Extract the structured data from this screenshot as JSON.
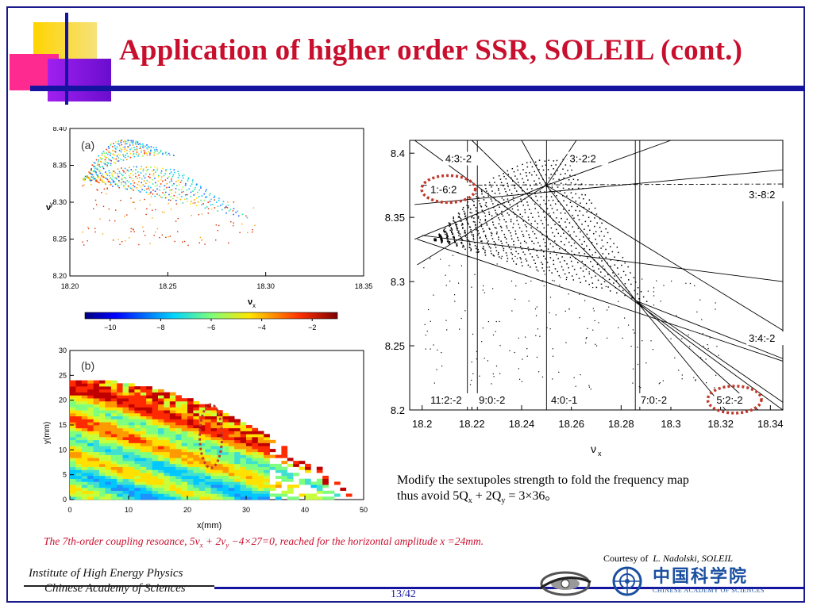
{
  "slide": {
    "title": "Application of higher order SSR, SOLEIL (cont.)",
    "page_number": "13/42",
    "institute_line1": "Institute of High Energy Physics",
    "institute_line2": "Chinese Academy of Sciences",
    "courtesy_prefix": "Courtesy of",
    "courtesy_name": "L. Nadolski, SOLEIL",
    "cas_logo_chinese": "中国科学院",
    "cas_logo_english": "CHINESE ACADEMY OF SCIENCES",
    "note_line1": "Modify the sextupoles strength to fold the frequency map",
    "note_line2": "thus avoid 5Q",
    "note_line2_sub1": "x",
    "note_line2_mid": " + 2Q",
    "note_line2_sub2": "y",
    "note_line2_end": " = 3×36。",
    "caption_pre": "The 7th-order coupling resoance, 5v",
    "caption_sub1": "x",
    "caption_mid": " + 2v",
    "caption_sub2": "y",
    "caption_post": " −4×27=0, reached for the horizontal amplitude x =24mm.",
    "colors": {
      "title": "#c8102e",
      "rule": "#1414a0",
      "caption": "#c8102e"
    }
  },
  "chart_data": [
    {
      "type": "scatter",
      "panel_label": "(a)",
      "xlabel": "ν",
      "xlabel_sub": "x",
      "ylabel": "ν",
      "ylabel_sub": "y",
      "x_ticks": [
        "18.20",
        "18.25",
        "18.30",
        "18.35"
      ],
      "y_ticks": [
        "8.20",
        "8.25",
        "8.30",
        "8.35",
        "8.40"
      ],
      "xlim": [
        18.2,
        18.35
      ],
      "ylim": [
        8.2,
        8.4
      ],
      "colorbar_ticks": [
        "−10",
        "−8",
        "−6",
        "−4",
        "−2"
      ],
      "colorbar_range": [
        -11,
        -1
      ]
    },
    {
      "type": "heatmap",
      "panel_label": "(b)",
      "xlabel": "x(mm)",
      "ylabel": "y(mm)",
      "x_ticks": [
        "0",
        "10",
        "20",
        "30",
        "40",
        "50"
      ],
      "y_ticks": [
        "0",
        "5",
        "10",
        "15",
        "20",
        "25",
        "30"
      ],
      "xlim": [
        0,
        50
      ],
      "ylim": [
        0,
        30
      ],
      "highlight_x_mm": 24
    },
    {
      "type": "scatter",
      "xlabel": "ν",
      "xlabel_sub": "x",
      "x_ticks": [
        "18.2",
        "18.22",
        "18.24",
        "18.26",
        "18.28",
        "18.3",
        "18.32",
        "18.34"
      ],
      "y_ticks": [
        "8.2",
        "8.25",
        "8.3",
        "8.35",
        "8.4"
      ],
      "xlim": [
        18.195,
        18.345
      ],
      "ylim": [
        8.2,
        8.41
      ],
      "resonance_labels": [
        "4:3:-2",
        "3:-2:2",
        "1:-6:2",
        "3:-8:2",
        "3:4:-2",
        "11:2:-2",
        "9:0:-2",
        "4:0:-1",
        "7:0:-2",
        "5:2:-2"
      ],
      "highlighted_resonances": [
        "1:-6:2",
        "5:2:-2"
      ]
    }
  ]
}
